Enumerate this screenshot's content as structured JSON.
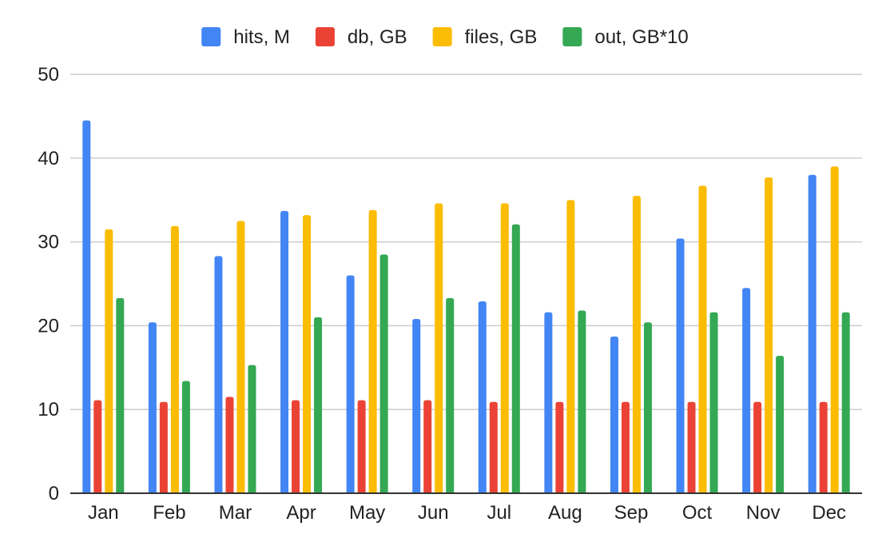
{
  "chart_data": {
    "type": "bar",
    "title": "",
    "xlabel": "",
    "ylabel": "",
    "ylim": [
      0,
      50
    ],
    "yticks": [
      0,
      10,
      20,
      30,
      40,
      50
    ],
    "grid": true,
    "legend_position": "top-center",
    "categories": [
      "Jan",
      "Feb",
      "Mar",
      "Apr",
      "May",
      "Jun",
      "Jul",
      "Aug",
      "Sep",
      "Oct",
      "Nov",
      "Dec"
    ],
    "series": [
      {
        "name": "hits, M",
        "color": "#4285F4",
        "values": [
          44.5,
          20.4,
          28.3,
          33.7,
          26.0,
          20.8,
          22.9,
          21.6,
          18.7,
          30.4,
          24.5,
          38.0
        ]
      },
      {
        "name": "db, GB",
        "color": "#EA4335",
        "values": [
          11.1,
          10.9,
          11.5,
          11.1,
          11.1,
          11.1,
          10.9,
          10.9,
          10.9,
          10.9,
          10.9,
          10.9
        ]
      },
      {
        "name": "files, GB",
        "color": "#FBBC04",
        "values": [
          31.5,
          31.9,
          32.5,
          33.2,
          33.8,
          34.6,
          34.6,
          35.0,
          35.5,
          36.7,
          37.7,
          39.0
        ]
      },
      {
        "name": "out, GB*10",
        "color": "#34A853",
        "values": [
          23.3,
          13.4,
          15.3,
          21.0,
          28.5,
          23.3,
          32.1,
          21.8,
          20.4,
          21.6,
          16.4,
          21.6
        ]
      }
    ]
  }
}
